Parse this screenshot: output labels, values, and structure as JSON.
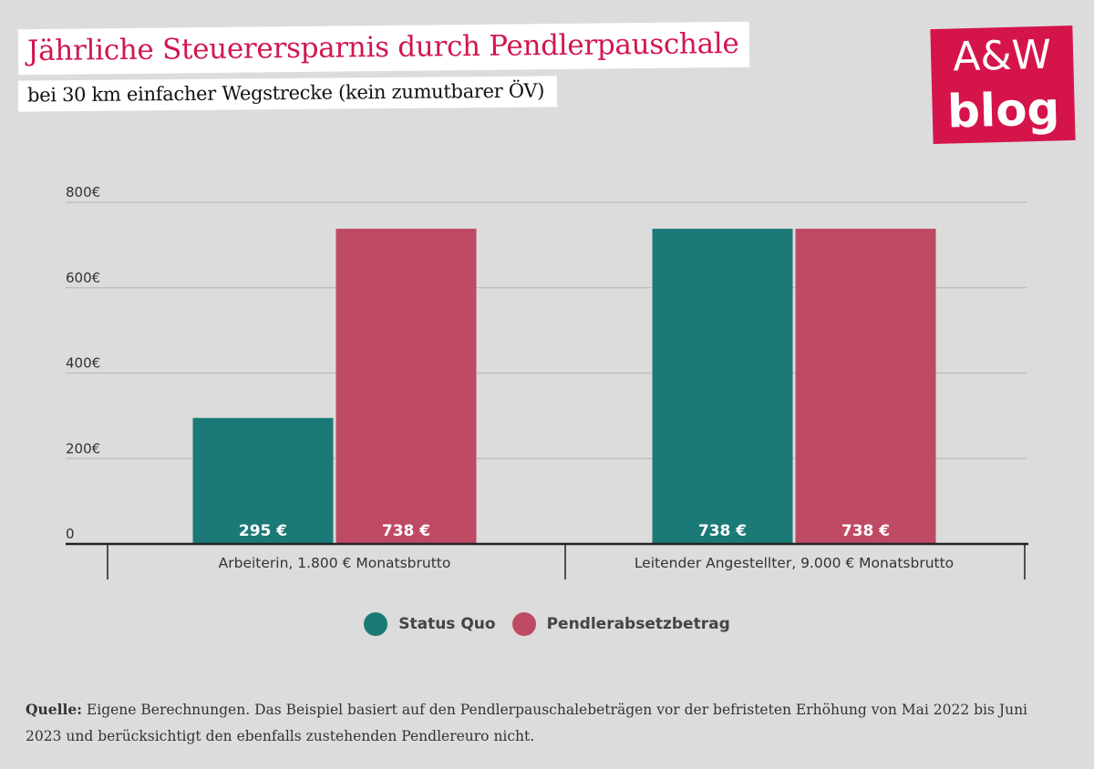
{
  "header": {
    "title": "Jährliche Steuerersparnis durch Pendlerpauschale",
    "subtitle": "bei 30 km einfacher Wegstrecke (kein zumutbarer ÖV)"
  },
  "logo": {
    "line1": "A&W",
    "line2": "blog"
  },
  "chart_data": {
    "type": "bar",
    "categories": [
      "Arbeiterin, 1.800 € Monatsbrutto",
      "Leitender Angestellter, 9.000 € Monatsbrutto"
    ],
    "series": [
      {
        "name": "Status Quo",
        "values": [
          295,
          738
        ],
        "labels": [
          "295 €",
          "738 €"
        ],
        "color": "#1b7a78"
      },
      {
        "name": "Pendlerabsetzbetrag",
        "values": [
          738,
          738
        ],
        "labels": [
          "738 €",
          "738 €"
        ],
        "color": "#bf4a64"
      }
    ],
    "yticks": [
      0,
      200,
      400,
      600,
      800
    ],
    "ytick_labels": [
      "0",
      "200€",
      "400€",
      "600€",
      "800€"
    ],
    "ylim": [
      0,
      800
    ],
    "grid": true,
    "legend": "bottom"
  },
  "footer": {
    "source_label": "Quelle:",
    "source_text": " Eigene Berechnungen. Das Beispiel basiert auf den Pendlerpauschalebeträgen vor der befristeten Erhöhung von Mai 2022 bis Juni 2023 und berücksichtigt den ebenfalls zustehenden Pendlereuro nicht."
  }
}
